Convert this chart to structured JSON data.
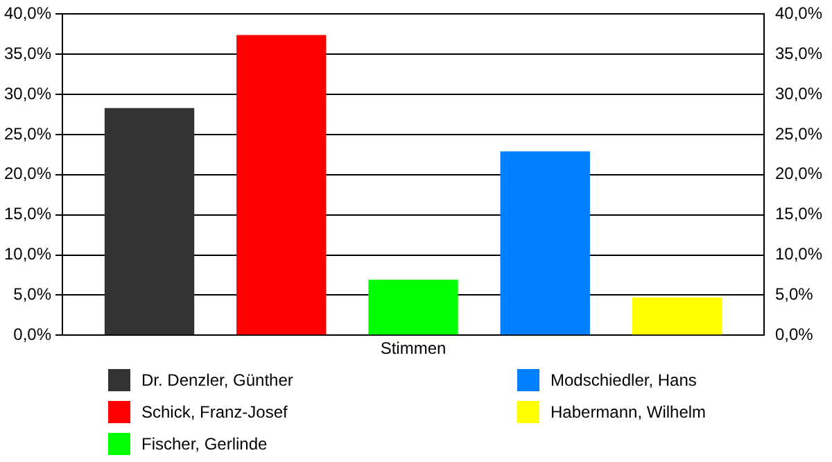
{
  "chart_data": {
    "type": "bar",
    "categories": [
      "Stimmen"
    ],
    "series": [
      {
        "name": "Dr. Denzler, Günther",
        "color": "#333333",
        "values": [
          28.3
        ]
      },
      {
        "name": "Schick, Franz-Josef",
        "color": "#ff0000",
        "values": [
          37.4
        ]
      },
      {
        "name": "Fischer, Gerlinde",
        "color": "#00ff00",
        "values": [
          6.9
        ]
      },
      {
        "name": "Modschiedler, Hans",
        "color": "#0080ff",
        "values": [
          22.9
        ]
      },
      {
        "name": "Habermann, Wilhelm",
        "color": "#ffff00",
        "values": [
          4.7
        ]
      }
    ],
    "ylim": [
      0,
      40
    ],
    "yticks": [
      {
        "value": 0,
        "label": "0,0%"
      },
      {
        "value": 5,
        "label": "5,0%"
      },
      {
        "value": 10,
        "label": "10,0%"
      },
      {
        "value": 15,
        "label": "15,0%"
      },
      {
        "value": 20,
        "label": "20,0%"
      },
      {
        "value": 25,
        "label": "25,0%"
      },
      {
        "value": 30,
        "label": "30,0%"
      },
      {
        "value": 35,
        "label": "35,0%"
      },
      {
        "value": 40,
        "label": "40,0%"
      }
    ],
    "grid": "y",
    "legend": "bottom"
  }
}
